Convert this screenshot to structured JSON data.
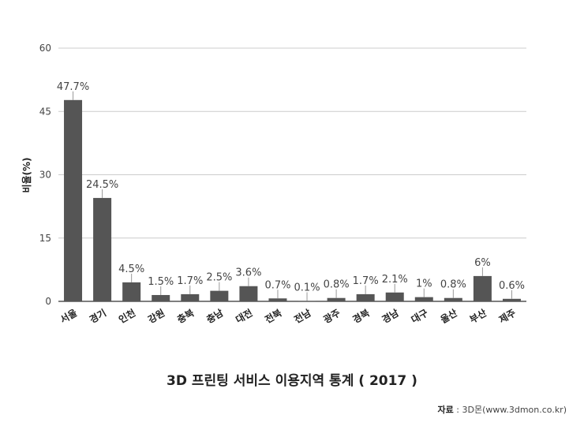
{
  "chart_data": {
    "type": "bar",
    "title": "3D 프린팅 서비스 이용지역 통계 ( 2017 )",
    "ylabel": "비율(%)",
    "xlabel": "",
    "ylim": [
      0,
      60
    ],
    "yticks": [
      0,
      15,
      30,
      45,
      60
    ],
    "grid": true,
    "bar_color": "#555555",
    "categories": [
      "서울",
      "경기",
      "인천",
      "강원",
      "충북",
      "충남",
      "대전",
      "전북",
      "전남",
      "광주",
      "경북",
      "경남",
      "대구",
      "울산",
      "부산",
      "제주"
    ],
    "values": [
      47.7,
      24.5,
      4.5,
      1.5,
      1.7,
      2.5,
      3.6,
      0.7,
      0.1,
      0.8,
      1.7,
      2.1,
      1,
      0.8,
      6,
      0.6
    ],
    "data_labels": [
      "47.7%",
      "24.5%",
      "4.5%",
      "1.5%",
      "1.7%",
      "2.5%",
      "3.6%",
      "0.7%",
      "0.1%",
      "0.8%",
      "1.7%",
      "2.1%",
      "1%",
      "0.8%",
      "6%",
      "0.6%"
    ]
  },
  "source": {
    "label": "자료",
    "text": " : 3D몬(www.3dmon.co.kr)"
  }
}
